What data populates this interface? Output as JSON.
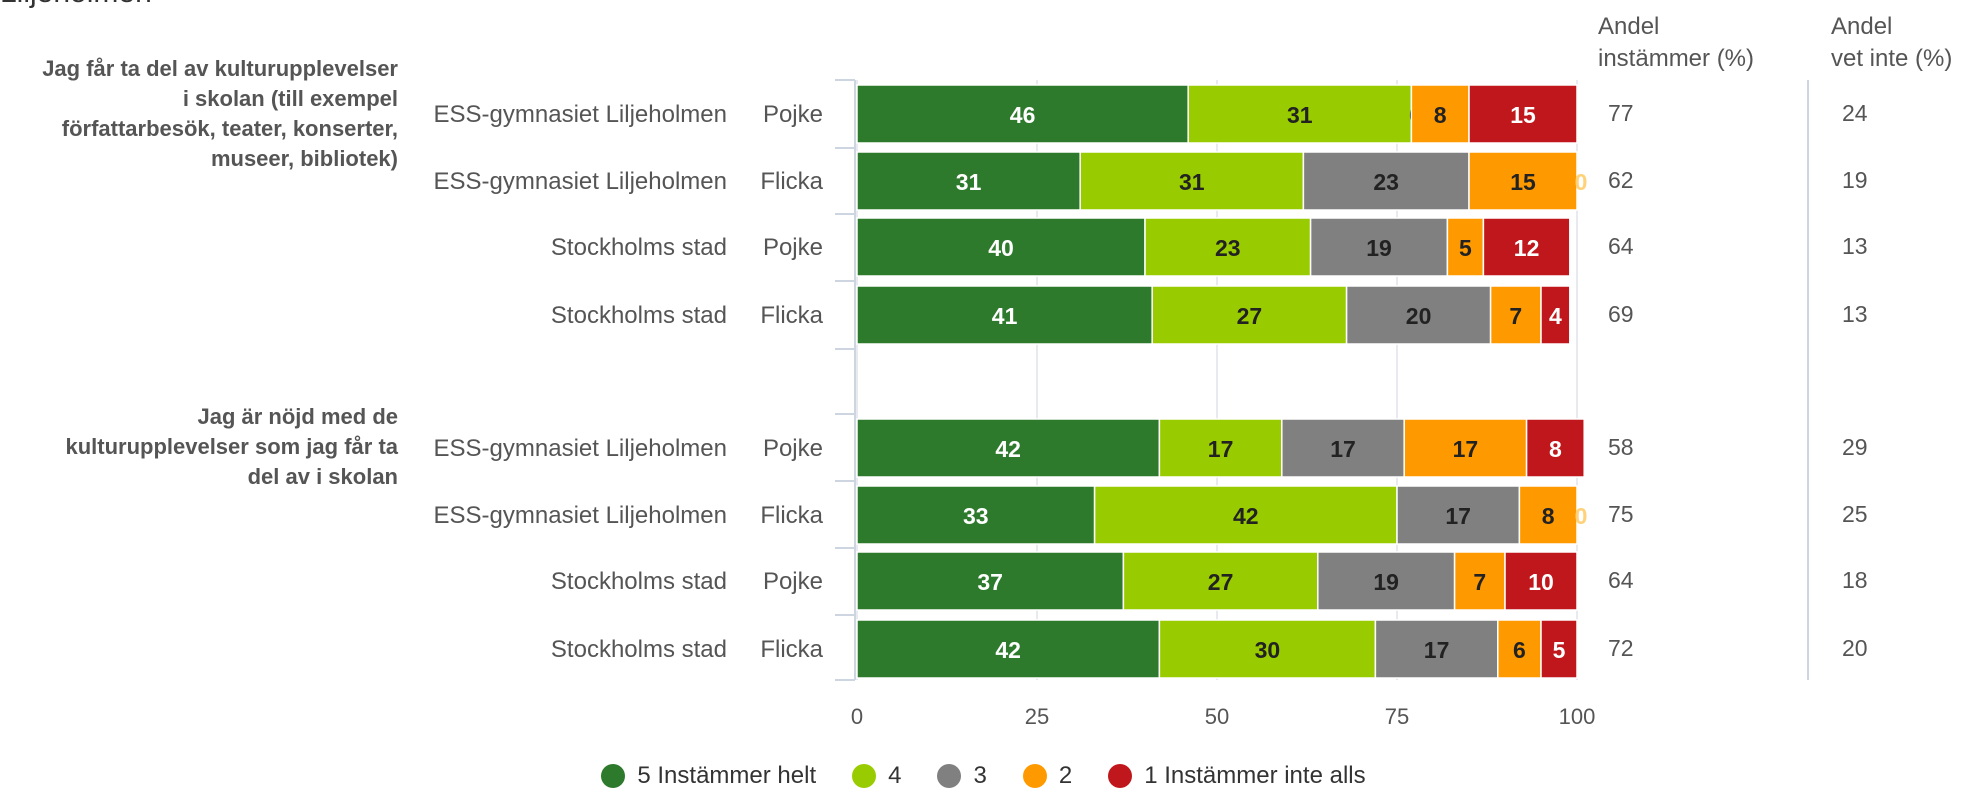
{
  "page_title": "Liljeholmen",
  "chart_data": {
    "type": "bar",
    "orientation": "horizontal",
    "stacked": true,
    "xlim": [
      0,
      100
    ],
    "xticks": [
      0,
      25,
      50,
      75,
      100
    ],
    "grid": true,
    "legend_position": "bottom-center",
    "column_headers": {
      "andel_instammer": [
        "Andel",
        "instämmer (%)"
      ],
      "andel_vet_inte": [
        "Andel",
        "vet inte (%)"
      ]
    },
    "series": [
      {
        "name": "5 Instämmer helt",
        "color": "#2d7a2d"
      },
      {
        "name": "4",
        "color": "#99cc00"
      },
      {
        "name": "3",
        "color": "#808080"
      },
      {
        "name": "2",
        "color": "#ff9900"
      },
      {
        "name": "1 Instämmer inte alls",
        "color": "#c0171c"
      }
    ],
    "groups": [
      {
        "question": [
          "Jag får ta del av kulturupplevelser",
          "i skolan (till exempel",
          "författarbesök, teater, konserter,",
          "museer, bibliotek)"
        ],
        "rows": [
          {
            "school": "ESS-gymnasiet Liljeholmen",
            "gender": "Pojke",
            "values": [
              46,
              31,
              0,
              8,
              15
            ],
            "andel_instammer": 77,
            "andel_vet_inte": 24
          },
          {
            "school": "ESS-gymnasiet Liljeholmen",
            "gender": "Flicka",
            "values": [
              31,
              31,
              23,
              15,
              0
            ],
            "andel_instammer": 62,
            "andel_vet_inte": 19
          },
          {
            "school": "Stockholms stad",
            "gender": "Pojke",
            "values": [
              40,
              23,
              19,
              5,
              12
            ],
            "andel_instammer": 64,
            "andel_vet_inte": 13
          },
          {
            "school": "Stockholms stad",
            "gender": "Flicka",
            "values": [
              41,
              27,
              20,
              7,
              4
            ],
            "andel_instammer": 69,
            "andel_vet_inte": 13
          }
        ]
      },
      {
        "question": [
          "Jag är nöjd med de",
          "kulturupplevelser som jag får ta",
          "del av i skolan"
        ],
        "rows": [
          {
            "school": "ESS-gymnasiet Liljeholmen",
            "gender": "Pojke",
            "values": [
              42,
              17,
              17,
              17,
              8
            ],
            "andel_instammer": 58,
            "andel_vet_inte": 29
          },
          {
            "school": "ESS-gymnasiet Liljeholmen",
            "gender": "Flicka",
            "values": [
              33,
              42,
              17,
              8,
              0
            ],
            "andel_instammer": 75,
            "andel_vet_inte": 25
          },
          {
            "school": "Stockholms stad",
            "gender": "Pojke",
            "values": [
              37,
              27,
              19,
              7,
              10
            ],
            "andel_instammer": 64,
            "andel_vet_inte": 18
          },
          {
            "school": "Stockholms stad",
            "gender": "Flicka",
            "values": [
              42,
              30,
              17,
              6,
              5
            ],
            "andel_instammer": 72,
            "andel_vet_inte": 20
          }
        ]
      }
    ]
  }
}
